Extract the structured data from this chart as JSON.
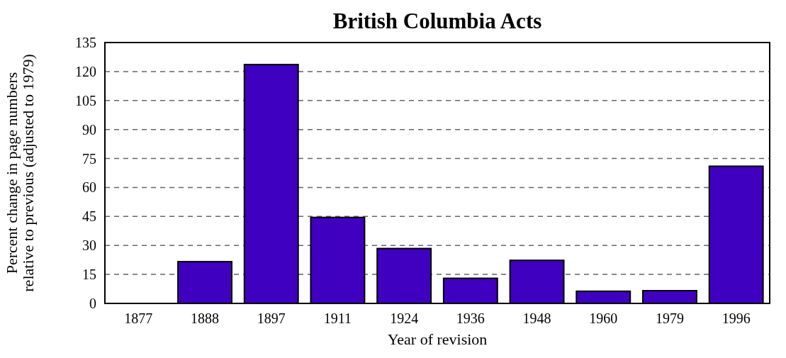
{
  "chart_data": {
    "type": "bar",
    "title": "British Columbia Acts",
    "xlabel": "Year of revision",
    "ylabel": "Percent change in page numbers\nrelative to previous (adjusted to 1979)",
    "categories": [
      "1877",
      "1888",
      "1897",
      "1911",
      "1924",
      "1936",
      "1948",
      "1960",
      "1979",
      "1996"
    ],
    "values": [
      0,
      21.6,
      123.6,
      44.5,
      28.4,
      13,
      22.3,
      6.3,
      6.6,
      71
    ],
    "color": "#4000bf",
    "ylim": [
      0,
      135
    ],
    "yticks": [
      0,
      15,
      30,
      45,
      60,
      75,
      90,
      105,
      120,
      135
    ],
    "grid": "y"
  }
}
